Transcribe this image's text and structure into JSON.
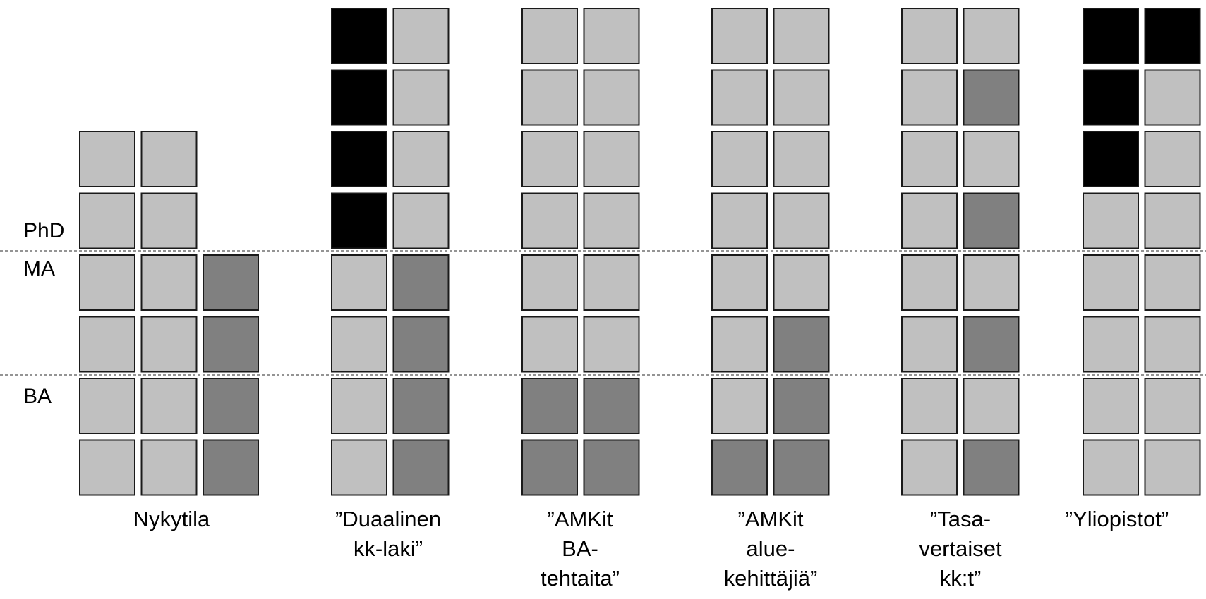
{
  "colors": {
    "light": "#c0c0c0",
    "mid": "#808080",
    "dark": "#000000",
    "border": "#1a1a1a",
    "divider": "#555555"
  },
  "levels": {
    "phd": "PhD",
    "ma": "MA",
    "ba": "BA"
  },
  "scenarios": [
    {
      "label": "Nykytila",
      "rows": [
        [
          "",
          "",
          ""
        ],
        [
          "",
          "",
          ""
        ],
        [
          "light",
          "light",
          ""
        ],
        [
          "light",
          "light",
          ""
        ],
        [
          "light",
          "light",
          "mid"
        ],
        [
          "light",
          "light",
          "mid"
        ],
        [
          "light",
          "light",
          "mid"
        ],
        [
          "light",
          "light",
          "mid"
        ]
      ]
    },
    {
      "label": "”Duaalinen\nkk-laki”",
      "rows": [
        [
          "dark",
          "light"
        ],
        [
          "dark",
          "light"
        ],
        [
          "dark",
          "light"
        ],
        [
          "dark",
          "light"
        ],
        [
          "light",
          "mid"
        ],
        [
          "light",
          "mid"
        ],
        [
          "light",
          "mid"
        ],
        [
          "light",
          "mid"
        ]
      ]
    },
    {
      "label": "”AMKit\nBA-\ntehtaita”",
      "rows": [
        [
          "light",
          "light"
        ],
        [
          "light",
          "light"
        ],
        [
          "light",
          "light"
        ],
        [
          "light",
          "light"
        ],
        [
          "light",
          "light"
        ],
        [
          "light",
          "light"
        ],
        [
          "mid",
          "mid"
        ],
        [
          "mid",
          "mid"
        ]
      ]
    },
    {
      "label": "”AMKit\nalue-\nkehittäjiä”",
      "rows": [
        [
          "light",
          "light"
        ],
        [
          "light",
          "light"
        ],
        [
          "light",
          "light"
        ],
        [
          "light",
          "light"
        ],
        [
          "light",
          "light"
        ],
        [
          "light",
          "mid"
        ],
        [
          "light",
          "mid"
        ],
        [
          "mid",
          "mid"
        ]
      ]
    },
    {
      "label": "”Tasa-\nvertaiset\nkk:t”",
      "rows": [
        [
          "light",
          "light"
        ],
        [
          "light",
          "mid"
        ],
        [
          "light",
          "light"
        ],
        [
          "light",
          "mid"
        ],
        [
          "light",
          "light"
        ],
        [
          "light",
          "mid"
        ],
        [
          "light",
          "light"
        ],
        [
          "light",
          "mid"
        ]
      ]
    },
    {
      "label": "”Yliopistot”",
      "rows": [
        [
          "dark",
          "dark"
        ],
        [
          "dark",
          "light"
        ],
        [
          "dark",
          "light"
        ],
        [
          "light",
          "light"
        ],
        [
          "light",
          "light"
        ],
        [
          "light",
          "light"
        ],
        [
          "light",
          "light"
        ],
        [
          "light",
          "light"
        ]
      ]
    }
  ]
}
